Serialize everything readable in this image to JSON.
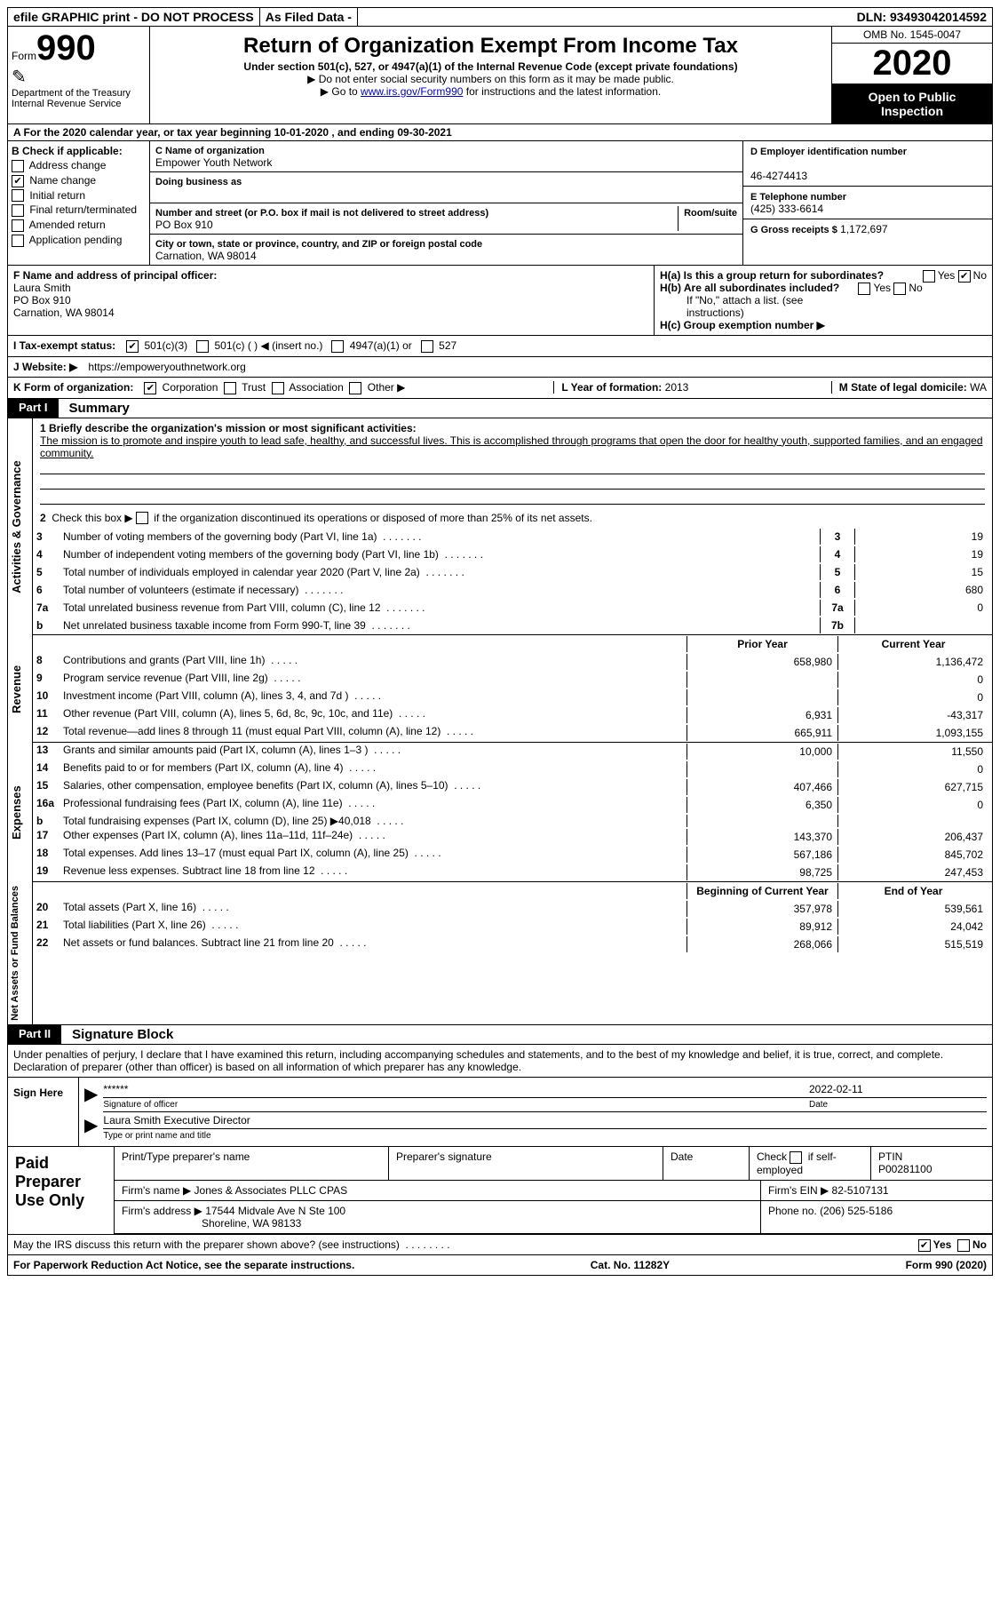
{
  "topbar": {
    "efile": "efile GRAPHIC print - DO NOT PROCESS",
    "asfiled": "As Filed Data -",
    "dln_label": "DLN:",
    "dln": "93493042014592"
  },
  "header": {
    "form_prefix": "Form",
    "form_no": "990",
    "dept": "Department of the Treasury\nInternal Revenue Service",
    "title": "Return of Organization Exempt From Income Tax",
    "sub": "Under section 501(c), 527, or 4947(a)(1) of the Internal Revenue Code (except private foundations)",
    "note1": "▶ Do not enter social security numbers on this form as it may be made public.",
    "note2_pre": "▶ Go to ",
    "note2_link": "www.irs.gov/Form990",
    "note2_post": " for instructions and the latest information.",
    "omb": "OMB No. 1545-0047",
    "year": "2020",
    "open": "Open to Public Inspection"
  },
  "rowA": "A   For the 2020 calendar year, or tax year beginning 10-01-2020   , and ending 09-30-2021",
  "colB": {
    "hdr": "B Check if applicable:",
    "items": [
      "Address change",
      "Name change",
      "Initial return",
      "Final return/terminated",
      "Amended return",
      "Application pending"
    ],
    "checked_idx": 1
  },
  "colC": {
    "name_lbl": "C Name of organization",
    "name": "Empower Youth Network",
    "dba_lbl": "Doing business as",
    "dba": "",
    "addr_lbl": "Number and street (or P.O. box if mail is not delivered to street address)",
    "room_lbl": "Room/suite",
    "addr": "PO Box 910",
    "city_lbl": "City or town, state or province, country, and ZIP or foreign postal code",
    "city": "Carnation, WA  98014"
  },
  "colD": {
    "ein_lbl": "D Employer identification number",
    "ein": "46-4274413",
    "tel_lbl": "E Telephone number",
    "tel": "(425) 333-6614",
    "gross_lbl": "G Gross receipts $",
    "gross": "1,172,697"
  },
  "rowF": {
    "lbl": "F  Name and address of principal officer:",
    "name": "Laura Smith",
    "addr1": "PO Box 910",
    "addr2": "Carnation, WA  98014"
  },
  "rowH": {
    "ha": "H(a)  Is this a group return for subordinates?",
    "hb": "H(b)  Are all subordinates included?",
    "hb_note": "If \"No,\" attach a list. (see instructions)",
    "hc": "H(c)  Group exemption number ▶",
    "yes": "Yes",
    "no": "No"
  },
  "rowI": {
    "lbl": "I   Tax-exempt status:",
    "opts": [
      "501(c)(3)",
      "501(c) (   ) ◀ (insert no.)",
      "4947(a)(1) or",
      "527"
    ]
  },
  "rowJ": {
    "lbl": "J   Website: ▶",
    "url": "https://empoweryouthnetwork.org"
  },
  "rowK": {
    "lbl": "K Form of organization:",
    "opts": [
      "Corporation",
      "Trust",
      "Association",
      "Other ▶"
    ],
    "l_lbl": "L Year of formation:",
    "l_val": "2013",
    "m_lbl": "M State of legal domicile:",
    "m_val": "WA"
  },
  "parts": {
    "p1": "Part I",
    "p1t": "Summary",
    "p2": "Part II",
    "p2t": "Signature Block"
  },
  "mission": {
    "lbl": "1 Briefly describe the organization's mission or most significant activities:",
    "text": "The mission is to promote and inspire youth to lead safe, healthy, and successful lives. This is accomplished through programs that open the door for healthy youth, supported families, and an engaged community."
  },
  "line2": "2  Check this box ▶        if the organization discontinued its operations or disposed of more than 25% of its net assets.",
  "ag_lines": [
    {
      "n": "3",
      "d": "Number of voting members of the governing body (Part VI, line 1a)",
      "ln": "3",
      "v": "19"
    },
    {
      "n": "4",
      "d": "Number of independent voting members of the governing body (Part VI, line 1b)",
      "ln": "4",
      "v": "19"
    },
    {
      "n": "5",
      "d": "Total number of individuals employed in calendar year 2020 (Part V, line 2a)",
      "ln": "5",
      "v": "15"
    },
    {
      "n": "6",
      "d": "Total number of volunteers (estimate if necessary)",
      "ln": "6",
      "v": "680"
    },
    {
      "n": "7a",
      "d": "Total unrelated business revenue from Part VIII, column (C), line 12",
      "ln": "7a",
      "v": "0"
    },
    {
      "n": "b",
      "d": "Net unrelated business taxable income from Form 990-T, line 39",
      "ln": "7b",
      "v": ""
    }
  ],
  "col_hdrs": {
    "prior": "Prior Year",
    "current": "Current Year"
  },
  "revenue": [
    {
      "n": "8",
      "d": "Contributions and grants (Part VIII, line 1h)",
      "v1": "658,980",
      "v2": "1,136,472"
    },
    {
      "n": "9",
      "d": "Program service revenue (Part VIII, line 2g)",
      "v1": "",
      "v2": "0"
    },
    {
      "n": "10",
      "d": "Investment income (Part VIII, column (A), lines 3, 4, and 7d )",
      "v1": "",
      "v2": "0"
    },
    {
      "n": "11",
      "d": "Other revenue (Part VIII, column (A), lines 5, 6d, 8c, 9c, 10c, and 11e)",
      "v1": "6,931",
      "v2": "-43,317"
    },
    {
      "n": "12",
      "d": "Total revenue—add lines 8 through 11 (must equal Part VIII, column (A), line 12)",
      "v1": "665,911",
      "v2": "1,093,155"
    }
  ],
  "expenses": [
    {
      "n": "13",
      "d": "Grants and similar amounts paid (Part IX, column (A), lines 1–3 )",
      "v1": "10,000",
      "v2": "11,550"
    },
    {
      "n": "14",
      "d": "Benefits paid to or for members (Part IX, column (A), line 4)",
      "v1": "",
      "v2": "0"
    },
    {
      "n": "15",
      "d": "Salaries, other compensation, employee benefits (Part IX, column (A), lines 5–10)",
      "v1": "407,466",
      "v2": "627,715"
    },
    {
      "n": "16a",
      "d": "Professional fundraising fees (Part IX, column (A), line 11e)",
      "v1": "6,350",
      "v2": "0"
    },
    {
      "n": "b",
      "d": "Total fundraising expenses (Part IX, column (D), line 25) ▶40,018",
      "v1": "",
      "v2": ""
    },
    {
      "n": "17",
      "d": "Other expenses (Part IX, column (A), lines 11a–11d, 11f–24e)",
      "v1": "143,370",
      "v2": "206,437"
    },
    {
      "n": "18",
      "d": "Total expenses. Add lines 13–17 (must equal Part IX, column (A), line 25)",
      "v1": "567,186",
      "v2": "845,702"
    },
    {
      "n": "19",
      "d": "Revenue less expenses. Subtract line 18 from line 12",
      "v1": "98,725",
      "v2": "247,453"
    }
  ],
  "na_hdrs": {
    "begin": "Beginning of Current Year",
    "end": "End of Year"
  },
  "net_assets": [
    {
      "n": "20",
      "d": "Total assets (Part X, line 16)",
      "v1": "357,978",
      "v2": "539,561"
    },
    {
      "n": "21",
      "d": "Total liabilities (Part X, line 26)",
      "v1": "89,912",
      "v2": "24,042"
    },
    {
      "n": "22",
      "d": "Net assets or fund balances. Subtract line 21 from line 20",
      "v1": "268,066",
      "v2": "515,519"
    }
  ],
  "vlabels": {
    "ag": "Activities & Governance",
    "rev": "Revenue",
    "exp": "Expenses",
    "na": "Net Assets or Fund Balances"
  },
  "sig": {
    "intro": "Under penalties of perjury, I declare that I have examined this return, including accompanying schedules and statements, and to the best of my knowledge and belief, it is true, correct, and complete. Declaration of preparer (other than officer) is based on all information of which preparer has any knowledge.",
    "sign_here": "Sign Here",
    "stars": "******",
    "sig_of_officer": "Signature of officer",
    "date": "2022-02-11",
    "date_lbl": "Date",
    "name_title": "Laura Smith  Executive Director",
    "name_title_lbl": "Type or print name and title"
  },
  "prep": {
    "lbl": "Paid Preparer Use Only",
    "print_lbl": "Print/Type preparer's name",
    "sig_lbl": "Preparer's signature",
    "date_lbl": "Date",
    "check_lbl": "Check         if self-employed",
    "ptin_lbl": "PTIN",
    "ptin": "P00281100",
    "firm_name_lbl": "Firm's name      ▶",
    "firm_name": "Jones & Associates PLLC CPAS",
    "firm_ein_lbl": "Firm's EIN ▶",
    "firm_ein": "82-5107131",
    "firm_addr_lbl": "Firm's address ▶",
    "firm_addr": "17544 Midvale Ave N Ste 100",
    "firm_city": "Shoreline, WA  98133",
    "phone_lbl": "Phone no.",
    "phone": "(206) 525-5186"
  },
  "discuss": {
    "q": "May the IRS discuss this return with the preparer shown above? (see instructions)",
    "yes": "Yes",
    "no": "No"
  },
  "footer": {
    "pra": "For Paperwork Reduction Act Notice, see the separate instructions.",
    "cat": "Cat. No. 11282Y",
    "form": "Form 990 (2020)"
  }
}
